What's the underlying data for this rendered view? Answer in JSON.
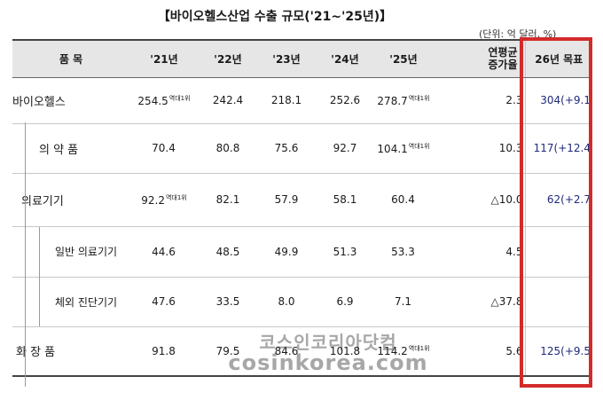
{
  "title": "【바이오헬스산업 수출 규모('21~'25년)】",
  "unit": "(단위: 억 달러, %)",
  "headers": [
    "품  목",
    "'21년",
    "'22년",
    "'23년",
    "'24년",
    "'25년",
    "연평균\n증가율",
    "26년 목표"
  ],
  "header_cagr_line1": "연평균",
  "header_cagr_line2": "증가율",
  "rows": [
    {
      "name": "바이오헬스",
      "v21": "254.5",
      "v21_note": "역대1위",
      "v22": "242.4",
      "v23": "218.1",
      "v24": "252.6",
      "v25": "278.7",
      "v25_note": "역대1위",
      "cagr": "2.3",
      "target": "304(+9.1"
    },
    {
      "name": "의 약 품",
      "v21": "70.4",
      "v21_note": "",
      "v22": "80.8",
      "v23": "75.6",
      "v24": "92.7",
      "v25": "104.1",
      "v25_note": "역대1위",
      "cagr": "10.3",
      "target": "117(+12.4"
    },
    {
      "name": "의료기기",
      "v21": "92.2",
      "v21_note": "역대1위",
      "v22": "82.1",
      "v23": "57.9",
      "v24": "58.1",
      "v25": "60.4",
      "v25_note": "",
      "cagr": "△10.0",
      "target": "62(+2.7"
    },
    {
      "name": "일반 의료기기",
      "v21": "44.6",
      "v21_note": "",
      "v22": "48.5",
      "v23": "49.9",
      "v24": "51.3",
      "v25": "53.3",
      "v25_note": "",
      "cagr": "4.5",
      "target": ""
    },
    {
      "name": "체외 진단기기",
      "v21": "47.6",
      "v21_note": "",
      "v22": "33.5",
      "v23": "8.0",
      "v24": "6.9",
      "v25": "7.1",
      "v25_note": "",
      "cagr": "△37.8",
      "target": ""
    },
    {
      "name": "화 장 품",
      "v21": "91.8",
      "v21_note": "",
      "v22": "79.5",
      "v23": "84.6",
      "v24": "101.8",
      "v25": "114.2",
      "v25_note": "역대1위",
      "cagr": "5.6",
      "target": "125(+9.5"
    }
  ],
  "watermark_line1": "코스인코리아닷컴",
  "watermark_line2": "cosinkorea.com",
  "colors": {
    "highlight_box": "#d42a2a",
    "target_text": "#1f2a7a",
    "header_bg": "#e6e6e6"
  }
}
